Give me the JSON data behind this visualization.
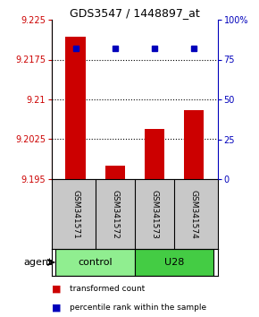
{
  "title": "GDS3547 / 1448897_at",
  "samples": [
    "GSM341571",
    "GSM341572",
    "GSM341573",
    "GSM341574"
  ],
  "transformed_counts": [
    9.2218,
    9.1975,
    9.2045,
    9.208
  ],
  "percentile_ranks": [
    82,
    82,
    82,
    82
  ],
  "ylim_left": [
    9.195,
    9.225
  ],
  "ylim_right": [
    0,
    100
  ],
  "yticks_left": [
    9.195,
    9.2025,
    9.21,
    9.2175,
    9.225
  ],
  "ytick_labels_left": [
    "9.195",
    "9.2025",
    "9.21",
    "9.2175",
    "9.225"
  ],
  "yticks_right": [
    0,
    25,
    50,
    75,
    100
  ],
  "ytick_labels_right": [
    "0",
    "25",
    "50",
    "75",
    "100%"
  ],
  "groups": [
    {
      "label": "control",
      "samples": [
        0,
        1
      ],
      "color": "#90EE90"
    },
    {
      "label": "U28",
      "samples": [
        2,
        3
      ],
      "color": "#44CC44"
    }
  ],
  "bar_color": "#CC0000",
  "dot_color": "#0000BB",
  "background_color": "#ffffff",
  "label_bg_color": "#C8C8C8",
  "agent_label": "agent",
  "bar_width": 0.5,
  "x_positions": [
    0,
    1,
    2,
    3
  ],
  "legend_items": [
    {
      "color": "#CC0000",
      "label": "transformed count"
    },
    {
      "color": "#0000BB",
      "label": "percentile rank within the sample"
    }
  ]
}
